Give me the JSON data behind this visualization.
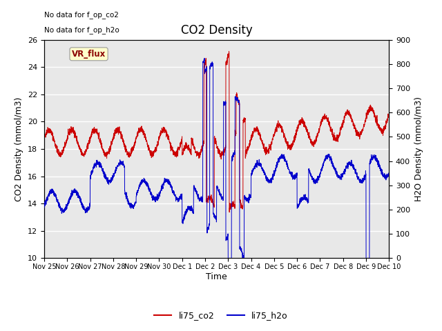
{
  "title": "CO2 Density",
  "xlabel": "Time",
  "ylabel_left": "CO2 Density (mmol/m3)",
  "ylabel_right": "H2O Density (mmol/m3)",
  "ylim_left": [
    10,
    26
  ],
  "ylim_right": [
    0,
    900
  ],
  "yticks_left": [
    10,
    12,
    14,
    16,
    18,
    20,
    22,
    24,
    26
  ],
  "yticks_right": [
    0,
    100,
    200,
    300,
    400,
    500,
    600,
    700,
    800,
    900
  ],
  "no_data_text": [
    "No data for f_op_co2",
    "No data for f_op_h2o"
  ],
  "vr_flux_label": "VR_flux",
  "legend_entries": [
    "li75_co2",
    "li75_h2o"
  ],
  "legend_colors": [
    "#cc0000",
    "#0000cc"
  ],
  "axes_facecolor": "#e8e8e8",
  "grid_color": "white",
  "title_fontsize": 12,
  "axis_label_fontsize": 9,
  "tick_fontsize": 8,
  "tick_labels": [
    "Nov 25",
    "Nov 26",
    "Nov 27",
    "Nov 28",
    "Nov 29",
    "Nov 30",
    "Dec 1",
    "Dec 2",
    "Dec 3",
    "Dec 4",
    "Dec 5",
    "Dec 6",
    "Dec 7",
    "Dec 8",
    "Dec 9",
    "Dec 10"
  ]
}
